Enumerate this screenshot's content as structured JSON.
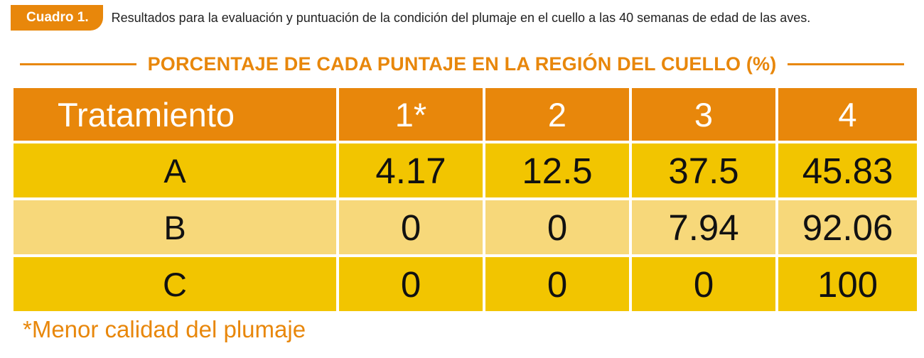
{
  "caption": {
    "badge": "Cuadro 1.",
    "text": "Resultados para la evaluación y puntuación de la condición del plumaje en el cuello a las 40 semanas de edad de las aves."
  },
  "heading": "PORCENTAJE DE CADA PUNTAJE EN LA REGIÓN DEL CUELLO (%)",
  "table": {
    "headers": [
      "Tratamiento",
      "1*",
      "2",
      "3",
      "4"
    ],
    "rows": [
      {
        "name": "A",
        "values": [
          "4.17",
          "12.5",
          "37.5",
          "45.83"
        ]
      },
      {
        "name": "B",
        "values": [
          "0",
          "0",
          "7.94",
          "92.06"
        ]
      },
      {
        "name": "C",
        "values": [
          "0",
          "0",
          "0",
          "100"
        ]
      }
    ]
  },
  "footnote": "*Menor calidad del plumaje",
  "colors": {
    "accent": "#e8870b",
    "row_dark": "#f2c500",
    "row_light": "#f7d87a"
  }
}
